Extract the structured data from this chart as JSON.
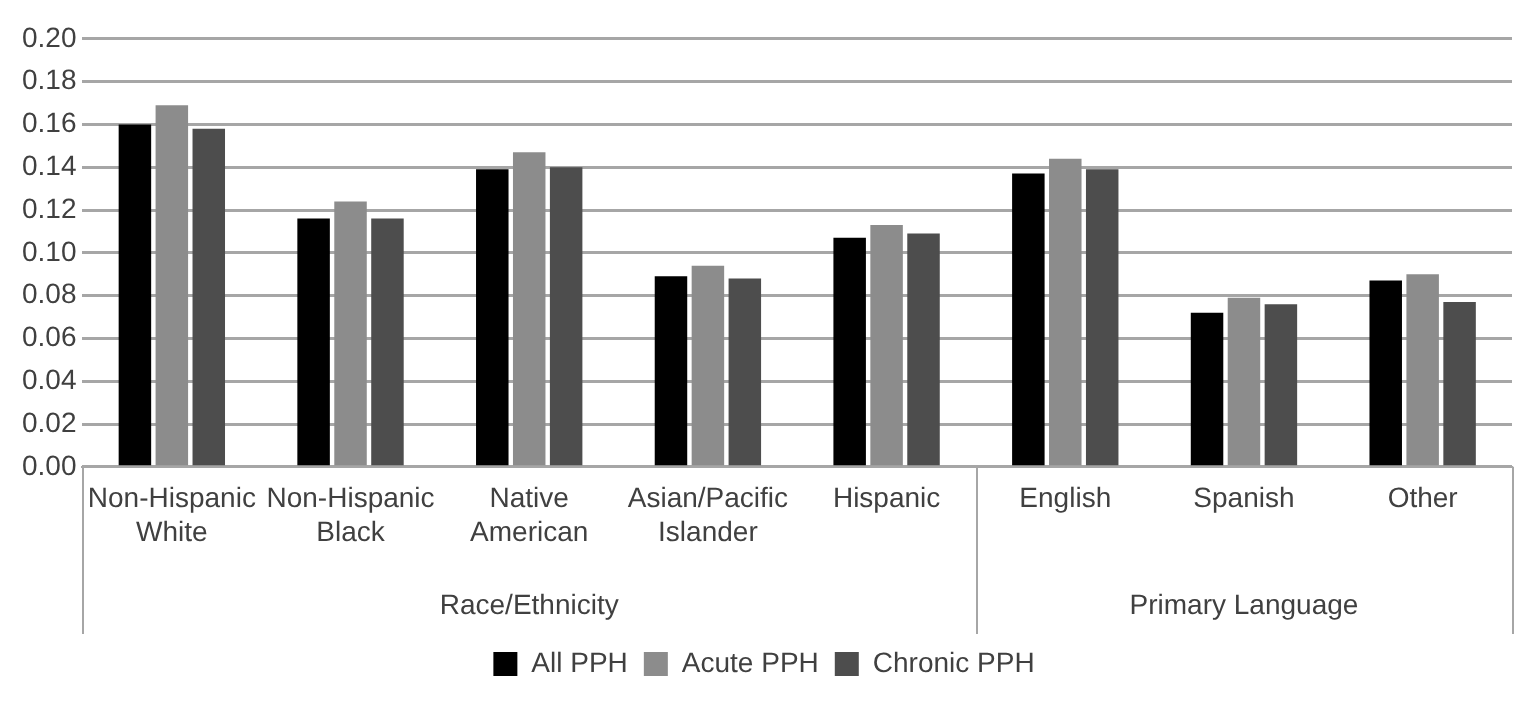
{
  "chart_data": {
    "type": "bar",
    "categories": [
      "Non-Hispanic White",
      "Non-Hispanic Black",
      "Native American",
      "Asian/Pacific Islander",
      "Hispanic",
      "English",
      "Spanish",
      "Other"
    ],
    "series": [
      {
        "name": "All PPH",
        "color": "#000000",
        "values": [
          0.16,
          0.116,
          0.139,
          0.089,
          0.107,
          0.137,
          0.072,
          0.087
        ]
      },
      {
        "name": "Acute PPH",
        "color": "#8c8c8c",
        "values": [
          0.169,
          0.124,
          0.147,
          0.094,
          0.113,
          0.144,
          0.079,
          0.09
        ]
      },
      {
        "name": "Chronic PPH",
        "color": "#4d4d4d",
        "values": [
          0.158,
          0.116,
          0.14,
          0.088,
          0.109,
          0.139,
          0.076,
          0.077
        ]
      }
    ],
    "annotations": [
      "Race/Ethnicity",
      "Primary Language"
    ],
    "ylim": [
      0,
      0.2
    ],
    "yticks": [
      {
        "value": 0,
        "label": "0.00"
      },
      {
        "value": 0.02,
        "label": "0.02"
      },
      {
        "value": 0.04,
        "label": "0.04"
      },
      {
        "value": 0.06,
        "label": "0.06"
      },
      {
        "value": 0.08,
        "label": "0.08"
      },
      {
        "value": 0.1,
        "label": "0.10"
      },
      {
        "value": 0.12,
        "label": "0.12"
      },
      {
        "value": 0.14,
        "label": "0.14"
      },
      {
        "value": 0.16,
        "label": "0.16"
      },
      {
        "value": 0.18,
        "label": "0.18"
      },
      {
        "value": 0.2,
        "label": "0.20"
      }
    ],
    "grid": "y",
    "legend": "bottom"
  }
}
